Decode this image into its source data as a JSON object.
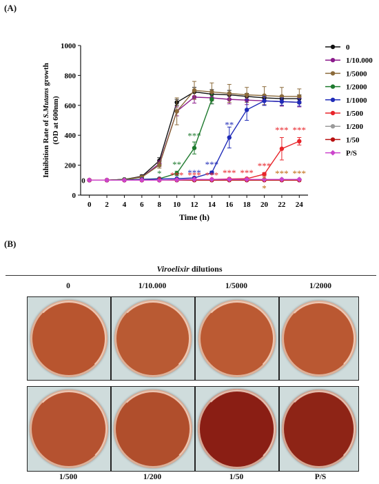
{
  "panel_a_label": "(A)",
  "panel_b_label": "(B)",
  "chart_data": {
    "type": "line",
    "title": "",
    "xlabel": "Time (h)",
    "ylabel_line1_prefix": "Inhibition  Rate  of ",
    "ylabel_line1_italic": "S.Mutans",
    "ylabel_line1_suffix": " growth",
    "ylabel_line2": "(OD at 600nm)",
    "xlim": [
      -1,
      25
    ],
    "ylim": [
      0,
      1000
    ],
    "x_ticks": [
      0,
      2,
      4,
      6,
      8,
      10,
      12,
      14,
      16,
      18,
      20,
      22,
      24
    ],
    "y_ticks": [
      0,
      200,
      400,
      600,
      800,
      1000
    ],
    "legend_position": "right",
    "y_axis_origin_label": "0",
    "series": [
      {
        "name": "0",
        "color": "#111111",
        "marker": "circle",
        "x": [
          0,
          2,
          4,
          6,
          8,
          10,
          12,
          14,
          16,
          18,
          20,
          22,
          24
        ],
        "y": [
          100,
          100,
          105,
          125,
          230,
          620,
          690,
          675,
          670,
          660,
          650,
          645,
          645
        ],
        "err": [
          0,
          0,
          5,
          10,
          20,
          20,
          30,
          30,
          30,
          20,
          20,
          20,
          25
        ]
      },
      {
        "name": "1/10.000",
        "color": "#8b1a8b",
        "marker": "circle",
        "x": [
          0,
          2,
          4,
          6,
          8,
          10,
          12,
          14,
          16,
          18,
          20,
          22,
          24
        ],
        "y": [
          100,
          100,
          105,
          120,
          210,
          560,
          655,
          650,
          640,
          635,
          630,
          625,
          620
        ],
        "err": [
          0,
          0,
          5,
          10,
          20,
          30,
          40,
          40,
          30,
          30,
          30,
          30,
          30
        ]
      },
      {
        "name": "1/5000",
        "color": "#8b6a3a",
        "marker": "circle",
        "x": [
          0,
          2,
          4,
          6,
          8,
          10,
          12,
          14,
          16,
          18,
          20,
          22,
          24
        ],
        "y": [
          100,
          100,
          105,
          120,
          200,
          560,
          700,
          690,
          680,
          670,
          665,
          660,
          660
        ],
        "err": [
          0,
          0,
          5,
          10,
          20,
          90,
          60,
          60,
          60,
          50,
          60,
          60,
          50
        ]
      },
      {
        "name": "1/2000",
        "color": "#1e7a2e",
        "marker": "circle",
        "x": [
          0,
          2,
          4,
          6,
          8,
          10,
          12,
          14
        ],
        "y": [
          100,
          100,
          105,
          105,
          110,
          145,
          315,
          640
        ],
        "err": [
          0,
          0,
          0,
          0,
          5,
          15,
          40,
          30
        ]
      },
      {
        "name": "1/1000",
        "color": "#1f2bb8",
        "marker": "circle",
        "x": [
          0,
          2,
          4,
          6,
          8,
          10,
          12,
          14,
          16,
          18,
          20,
          22,
          24
        ],
        "y": [
          100,
          100,
          100,
          105,
          108,
          110,
          115,
          150,
          385,
          570,
          630,
          625,
          620
        ],
        "err": [
          0,
          0,
          0,
          0,
          0,
          0,
          5,
          10,
          70,
          70,
          30,
          25,
          25
        ]
      },
      {
        "name": "1/500",
        "color": "#e8242a",
        "marker": "circle",
        "x": [
          0,
          2,
          4,
          6,
          8,
          10,
          12,
          14,
          16,
          18,
          20,
          22,
          24
        ],
        "y": [
          100,
          100,
          100,
          100,
          100,
          102,
          105,
          105,
          108,
          110,
          140,
          310,
          360
        ],
        "err": [
          0,
          0,
          0,
          0,
          0,
          0,
          0,
          0,
          0,
          0,
          10,
          75,
          25
        ]
      },
      {
        "name": "1/200",
        "color": "#9a9a9a",
        "marker": "circle",
        "x": [
          0,
          2,
          4,
          6,
          8,
          10,
          12,
          14,
          16,
          18,
          20,
          22,
          24
        ],
        "y": [
          100,
          100,
          100,
          100,
          100,
          100,
          100,
          100,
          102,
          103,
          105,
          105,
          105
        ],
        "err": [
          0,
          0,
          0,
          0,
          0,
          0,
          0,
          0,
          0,
          0,
          0,
          0,
          0
        ]
      },
      {
        "name": "1/50",
        "color": "#b81010",
        "marker": "circle",
        "x": [
          0,
          2,
          4,
          6,
          8,
          10,
          12,
          14,
          16,
          18,
          20,
          22,
          24
        ],
        "y": [
          100,
          100,
          100,
          100,
          100,
          100,
          100,
          100,
          100,
          100,
          100,
          100,
          100
        ],
        "err": [
          0,
          0,
          0,
          0,
          0,
          0,
          0,
          0,
          0,
          0,
          0,
          0,
          0
        ]
      },
      {
        "name": "P/S",
        "color": "#cc44cc",
        "marker": "diamond",
        "x": [
          0,
          2,
          4,
          6,
          8,
          10,
          12,
          14,
          16,
          18,
          20,
          22,
          24
        ],
        "y": [
          100,
          100,
          100,
          100,
          100,
          102,
          105,
          105,
          105,
          105,
          105,
          105,
          105
        ],
        "err": [
          0,
          0,
          0,
          0,
          0,
          0,
          0,
          0,
          0,
          0,
          0,
          0,
          0
        ]
      }
    ],
    "annotations": [
      {
        "text": "*",
        "x": 8,
        "y": 125,
        "color": "#1e7a2e"
      },
      {
        "text": "**",
        "x": 10,
        "y": 185,
        "color": "#1e7a2e"
      },
      {
        "text": "***",
        "x": 12,
        "y": 375,
        "color": "#1e7a2e"
      },
      {
        "text": "***",
        "x": 12,
        "y": 130,
        "color": "#1f2bb8"
      },
      {
        "text": "***",
        "x": 14,
        "y": 185,
        "color": "#1f2bb8"
      },
      {
        "text": "**",
        "x": 16,
        "y": 450,
        "color": "#1f2bb8"
      },
      {
        "text": "*",
        "x": 8,
        "y": 85,
        "color": "#e8242a"
      },
      {
        "text": "***",
        "x": 10,
        "y": 112,
        "color": "#e8242a"
      },
      {
        "text": "***",
        "x": 12,
        "y": 112,
        "color": "#e8242a"
      },
      {
        "text": "***",
        "x": 14,
        "y": 112,
        "color": "#e8242a"
      },
      {
        "text": "***",
        "x": 16,
        "y": 128,
        "color": "#e8242a"
      },
      {
        "text": "***",
        "x": 18,
        "y": 128,
        "color": "#e8242a"
      },
      {
        "text": "***",
        "x": 20,
        "y": 175,
        "color": "#e8242a"
      },
      {
        "text": "***",
        "x": 22,
        "y": 415,
        "color": "#e8242a"
      },
      {
        "text": "***",
        "x": 24,
        "y": 415,
        "color": "#e8242a"
      },
      {
        "text": "*",
        "x": 20,
        "y": 90,
        "color": "#c06a10"
      },
      {
        "text": "*",
        "x": 20,
        "y": 25,
        "color": "#c06a10"
      },
      {
        "text": "***",
        "x": 22,
        "y": 125,
        "color": "#c06a10"
      },
      {
        "text": "***",
        "x": 24,
        "y": 125,
        "color": "#c06a10"
      }
    ]
  },
  "panel_b": {
    "header_italic": "Viroelixir",
    "header_rest": " dilutions",
    "top_labels": [
      "0",
      "1/10.000",
      "1/5000",
      "1/2000"
    ],
    "bottom_labels": [
      "1/500",
      "1/200",
      "1/50",
      "P/S"
    ],
    "top_wells": [
      {
        "name": "0",
        "stain_color": "#b8552f"
      },
      {
        "name": "1/10.000",
        "stain_color": "#b95a33"
      },
      {
        "name": "1/5000",
        "stain_color": "#bb5a33"
      },
      {
        "name": "1/2000",
        "stain_color": "#ba5832"
      }
    ],
    "bottom_wells": [
      {
        "name": "1/500",
        "stain_color": "#b55230"
      },
      {
        "name": "1/200",
        "stain_color": "#b04e2c"
      },
      {
        "name": "1/50",
        "stain_color": "#8a1e14"
      },
      {
        "name": "P/S",
        "stain_color": "#8e2416"
      }
    ]
  }
}
